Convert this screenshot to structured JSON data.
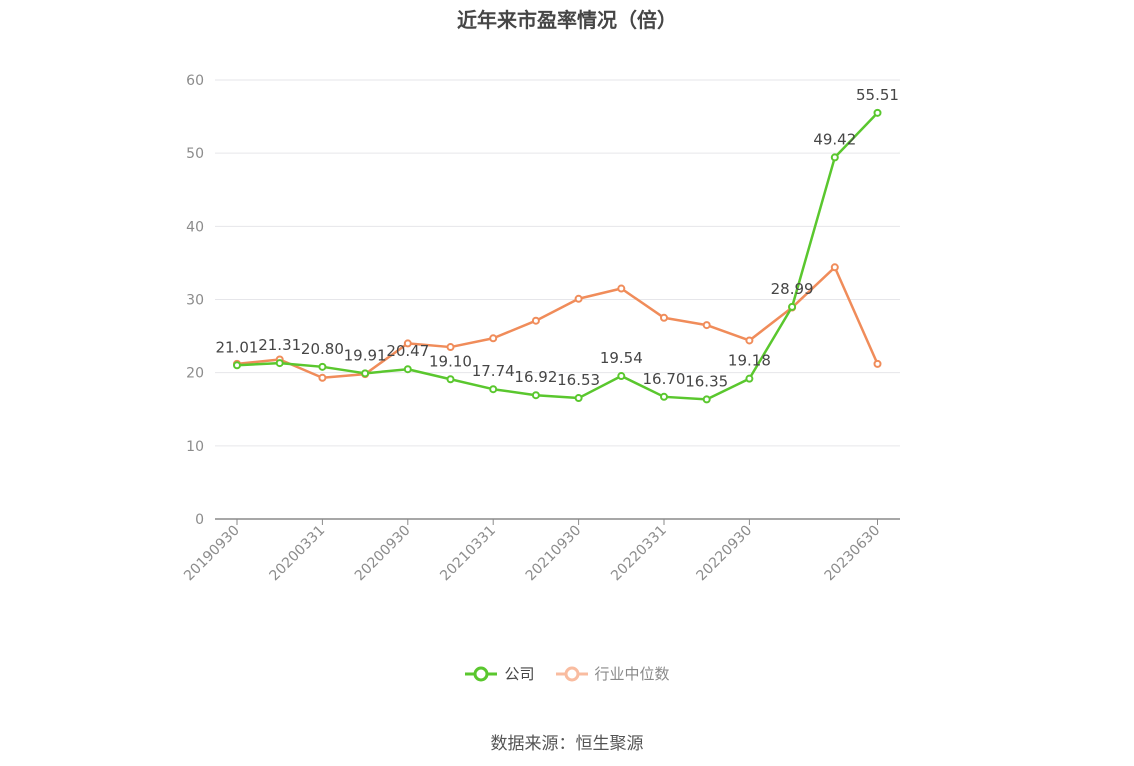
{
  "chart_data": {
    "type": "line",
    "title": "近年来市盈率情况（倍）",
    "xlabel": "",
    "ylabel": "",
    "ylim": [
      0,
      60
    ],
    "yticks": [
      0,
      10,
      20,
      30,
      40,
      50,
      60
    ],
    "grid": true,
    "legend_position": "bottom",
    "x_tick_labels": [
      "20190930",
      "20200331",
      "20200930",
      "20210331",
      "20210930",
      "20220331",
      "20220930",
      "20230630"
    ],
    "x": [
      "20190930",
      "20191231",
      "20200331",
      "20200630",
      "20200930",
      "20201231",
      "20210331",
      "20210630",
      "20210930",
      "20211231",
      "20220331",
      "20220630",
      "20220930",
      "20221231",
      "20230331",
      "20230630"
    ],
    "series": [
      {
        "name": "公司",
        "color": "#5ac72e",
        "values": [
          21.01,
          21.31,
          20.8,
          19.91,
          20.47,
          19.1,
          17.74,
          16.92,
          16.53,
          19.54,
          16.7,
          16.35,
          19.18,
          28.99,
          49.42,
          55.51
        ],
        "labels_shown": true
      },
      {
        "name": "行业中位数",
        "color": "#f08c5a",
        "values": [
          21.2,
          21.8,
          19.3,
          19.8,
          24.0,
          23.5,
          24.7,
          27.1,
          30.1,
          31.5,
          27.5,
          26.5,
          24.4,
          28.9,
          34.4,
          21.2
        ],
        "labels_shown": false
      }
    ]
  },
  "legend": {
    "company_label": "公司",
    "industry_label": "行业中位数"
  },
  "source": "数据来源：恒生聚源"
}
